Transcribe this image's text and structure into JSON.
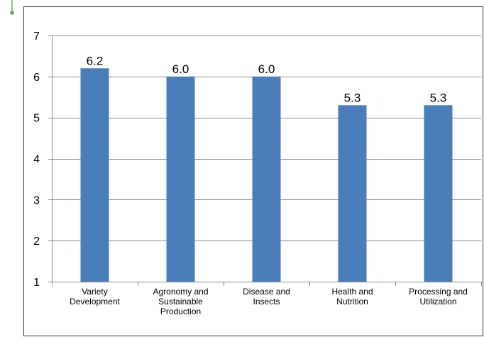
{
  "colors": {
    "bar": "#4a7ebb",
    "grid": "#8c8c8c",
    "frame": "#333333",
    "accent": "#7aa86a"
  },
  "chart_data": {
    "type": "bar",
    "categories": [
      [
        "Variety",
        "Development"
      ],
      [
        "Agronomy and",
        "Sustainable",
        "Production"
      ],
      [
        "Disease and",
        "Insects"
      ],
      [
        "Health and",
        "Nutrition"
      ],
      [
        "Processing and",
        "Utilization"
      ]
    ],
    "values": [
      6.2,
      6.0,
      6.0,
      5.3,
      5.3
    ],
    "data_labels": [
      "6.2",
      "6.0",
      "6.0",
      "5.3",
      "5.3"
    ],
    "ylim": [
      1,
      7
    ],
    "yticks": [
      "1",
      "2",
      "3",
      "4",
      "5",
      "6",
      "7"
    ],
    "grid": true,
    "legend": "none"
  }
}
